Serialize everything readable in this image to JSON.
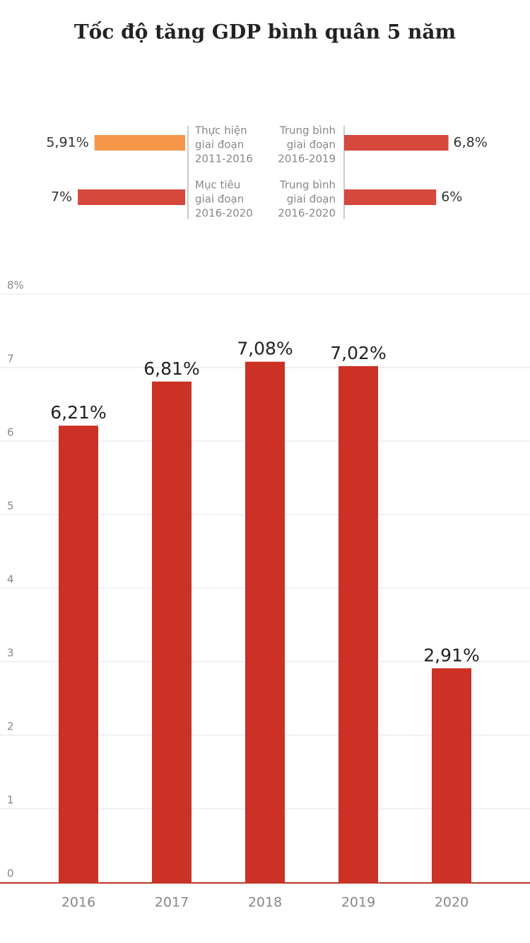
{
  "chart_data": [
    {
      "type": "diverging-bar",
      "title": "Tốc độ tăng GDP bình quân 5 năm",
      "categories": [
        [
          "Thực hiện",
          "giai đoạn",
          "2011-2016"
        ],
        [
          "Mục tiêu",
          "giai đoạn",
          "2016-2020"
        ],
        [
          "Trung bình",
          "giai đoạn",
          "2016-2019"
        ],
        [
          "Trung bình",
          "giai đoạn",
          "2016-2020"
        ]
      ],
      "values": [
        5.91,
        7,
        6.8,
        6
      ],
      "value_labels": [
        "5,91%",
        "7%",
        "6,8%",
        "6%"
      ],
      "colors": [
        "#f5964b",
        "#d6473c",
        "#d6473c",
        "#d6473c"
      ]
    },
    {
      "type": "bar",
      "categories": [
        "2016",
        "2017",
        "2018",
        "2019",
        "2020"
      ],
      "values": [
        6.21,
        6.81,
        7.08,
        7.02,
        2.91
      ],
      "value_labels": [
        "6,21%",
        "6,81%",
        "7,08%",
        "7,02%",
        "2,91%"
      ],
      "color": "#cb3124",
      "ylim": [
        0,
        8
      ],
      "yticks": [
        0,
        1,
        2,
        3,
        4,
        5,
        6,
        7,
        {
          "value": 8,
          "label": "8%"
        }
      ],
      "grid": true
    }
  ]
}
